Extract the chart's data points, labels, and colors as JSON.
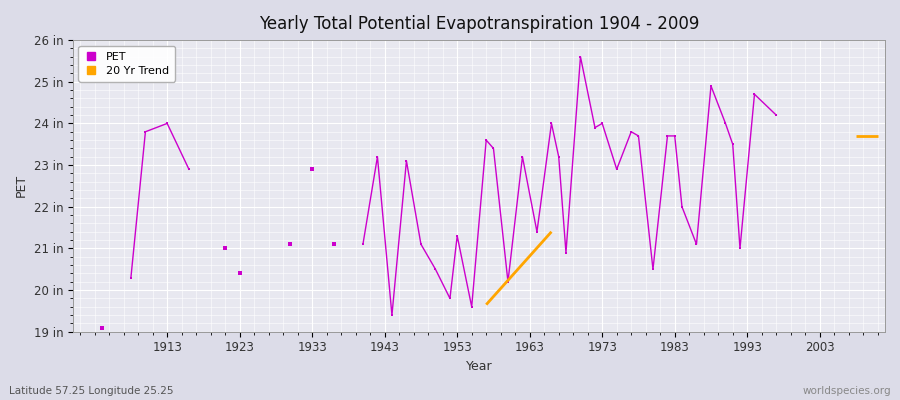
{
  "title": "Yearly Total Potential Evapotranspiration 1904 - 2009",
  "ylabel": "PET",
  "xlabel": "Year",
  "bottom_left": "Latitude 57.25 Longitude 25.25",
  "bottom_right": "worldspecies.org",
  "pet_color": "#cc00cc",
  "trend_color": "#ffa500",
  "bg_color": "#dcdce8",
  "plot_bg_color": "#e8e8f0",
  "grid_color": "#ffffff",
  "ylim": [
    19,
    26
  ],
  "ytick_labels": [
    "19 in",
    "20 in",
    "21 in",
    "22 in",
    "23 in",
    "24 in",
    "25 in",
    "26 in"
  ],
  "ytick_values": [
    19,
    20,
    21,
    22,
    23,
    24,
    25,
    26
  ],
  "years": [
    1904,
    1908,
    1910,
    1913,
    1916,
    1921,
    1923,
    1930,
    1933,
    1936,
    1940,
    1942,
    1944,
    1946,
    1948,
    1950,
    1952,
    1953,
    1955,
    1957,
    1958,
    1960,
    1962,
    1964,
    1966,
    1967,
    1968,
    1970,
    1972,
    1973,
    1975,
    1977,
    1978,
    1980,
    1982,
    1983,
    1984,
    1986,
    1988,
    1990,
    1991,
    1992,
    1994,
    1997,
    2008
  ],
  "segments": [
    {
      "years": [
        1908,
        1910,
        1913,
        1916
      ],
      "values": [
        20.3,
        23.8,
        24.0,
        22.9
      ]
    },
    {
      "years": [
        1940,
        1942,
        1944,
        1946,
        1948,
        1950,
        1952,
        1953,
        1955,
        1957,
        1958,
        1960,
        1962,
        1964,
        1966,
        1967,
        1968,
        1970,
        1972,
        1973,
        1975,
        1977,
        1978,
        1980,
        1982,
        1983,
        1984,
        1986,
        1988,
        1990,
        1991,
        1992,
        1994,
        1997
      ],
      "values": [
        21.1,
        23.2,
        19.4,
        23.1,
        21.1,
        20.5,
        19.8,
        21.3,
        19.6,
        23.6,
        23.4,
        20.2,
        23.2,
        21.4,
        24.0,
        23.2,
        20.9,
        25.6,
        23.9,
        24.0,
        22.9,
        23.8,
        23.7,
        20.5,
        23.7,
        23.7,
        22.0,
        21.1,
        24.9,
        24.0,
        23.5,
        21.0,
        24.7,
        24.2
      ]
    }
  ],
  "isolated_points": {
    "years": [
      1904,
      1921,
      1923,
      1930,
      1933,
      1936
    ],
    "values": [
      19.1,
      21.0,
      20.4,
      21.1,
      22.9,
      21.1
    ]
  },
  "trend_segments": [
    {
      "years": [
        1957,
        1966
      ],
      "values": [
        19.65,
        21.4
      ]
    },
    {
      "years": [
        2008,
        2011
      ],
      "values": [
        23.7,
        23.7
      ]
    }
  ],
  "xlim": [
    1900,
    2012
  ],
  "xtick_years": [
    1913,
    1923,
    1933,
    1943,
    1953,
    1963,
    1973,
    1983,
    1993,
    2003
  ]
}
